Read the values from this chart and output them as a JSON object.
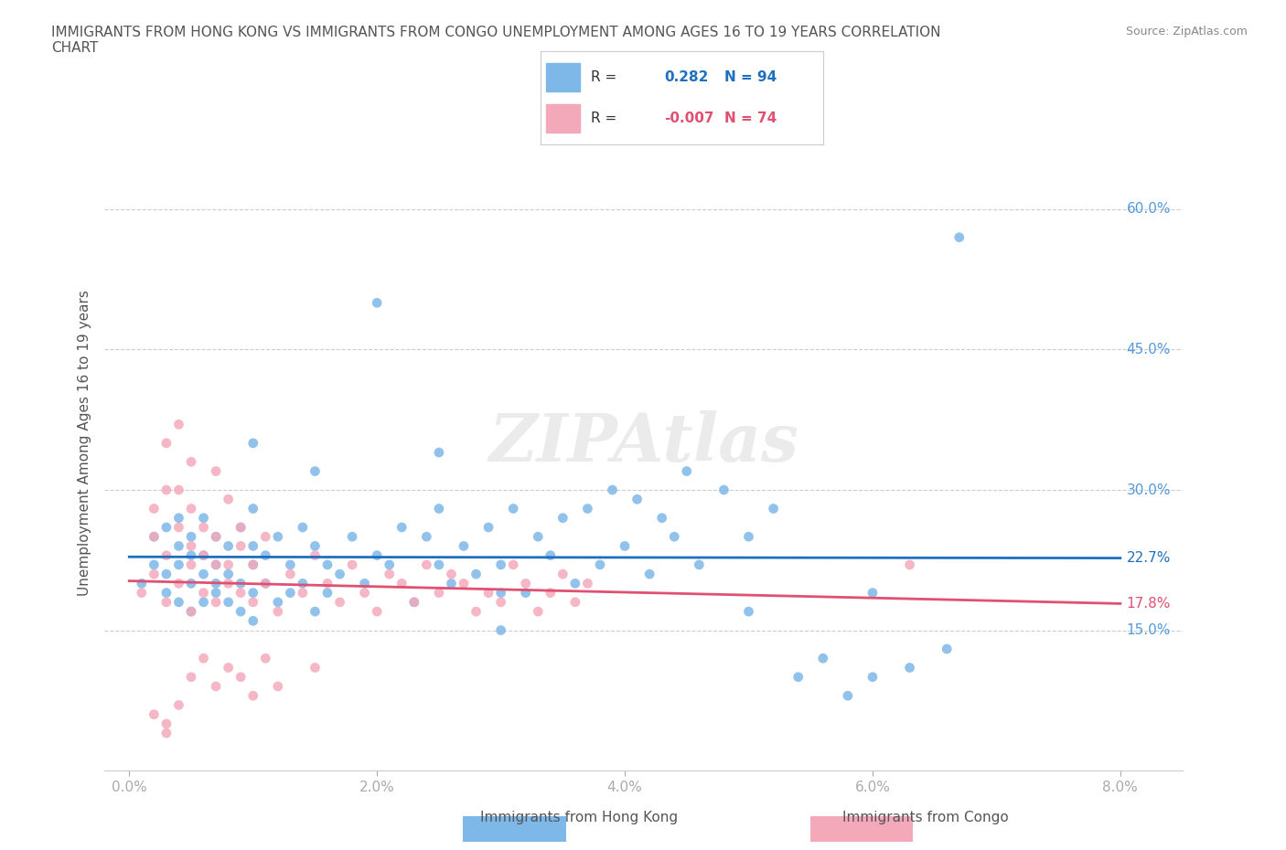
{
  "title": "IMMIGRANTS FROM HONG KONG VS IMMIGRANTS FROM CONGO UNEMPLOYMENT AMONG AGES 16 TO 19 YEARS CORRELATION\nCHART",
  "source": "Source: ZipAtlas.com",
  "xlabel": "",
  "ylabel": "Unemployment Among Ages 16 to 19 years",
  "xlim": [
    0.0,
    0.08
  ],
  "ylim": [
    0.0,
    0.7
  ],
  "xticks": [
    0.0,
    0.02,
    0.04,
    0.06,
    0.08
  ],
  "xticklabels": [
    "0.0%",
    "2.0%",
    "4.0%",
    "6.0%",
    "8.0%"
  ],
  "yticks": [
    0.15,
    0.3,
    0.45,
    0.6
  ],
  "yticklabels": [
    "15.0%",
    "30.0%",
    "45.0%",
    "60.0%"
  ],
  "hk_color": "#7EB8E8",
  "congo_color": "#F4A9BB",
  "hk_line_color": "#1E6FBF",
  "congo_line_color": "#E05070",
  "hk_R": 0.282,
  "hk_N": 94,
  "congo_R": -0.007,
  "congo_N": 74,
  "watermark": "ZIPAtlas",
  "background_color": "#ffffff",
  "grid_color": "#cccccc",
  "title_color": "#555555",
  "tick_color": "#5599DD",
  "hk_scatter_x": [
    0.001,
    0.002,
    0.002,
    0.003,
    0.003,
    0.003,
    0.004,
    0.004,
    0.004,
    0.004,
    0.005,
    0.005,
    0.005,
    0.005,
    0.006,
    0.006,
    0.006,
    0.006,
    0.007,
    0.007,
    0.007,
    0.007,
    0.008,
    0.008,
    0.008,
    0.009,
    0.009,
    0.009,
    0.01,
    0.01,
    0.01,
    0.01,
    0.011,
    0.011,
    0.012,
    0.012,
    0.013,
    0.013,
    0.014,
    0.014,
    0.015,
    0.015,
    0.016,
    0.016,
    0.017,
    0.018,
    0.019,
    0.02,
    0.021,
    0.022,
    0.023,
    0.024,
    0.025,
    0.025,
    0.026,
    0.027,
    0.028,
    0.029,
    0.03,
    0.031,
    0.032,
    0.033,
    0.034,
    0.035,
    0.036,
    0.037,
    0.038,
    0.039,
    0.04,
    0.041,
    0.042,
    0.043,
    0.044,
    0.045,
    0.046,
    0.048,
    0.05,
    0.052,
    0.054,
    0.056,
    0.058,
    0.06,
    0.063,
    0.066,
    0.01,
    0.015,
    0.02,
    0.025,
    0.03,
    0.05,
    0.06,
    0.067,
    0.01,
    0.03
  ],
  "hk_scatter_y": [
    0.2,
    0.22,
    0.25,
    0.19,
    0.21,
    0.26,
    0.18,
    0.22,
    0.24,
    0.27,
    0.17,
    0.2,
    0.23,
    0.25,
    0.18,
    0.21,
    0.23,
    0.27,
    0.19,
    0.22,
    0.2,
    0.25,
    0.18,
    0.21,
    0.24,
    0.17,
    0.2,
    0.26,
    0.19,
    0.22,
    0.24,
    0.28,
    0.2,
    0.23,
    0.18,
    0.25,
    0.19,
    0.22,
    0.2,
    0.26,
    0.17,
    0.24,
    0.19,
    0.22,
    0.21,
    0.25,
    0.2,
    0.23,
    0.22,
    0.26,
    0.18,
    0.25,
    0.22,
    0.28,
    0.2,
    0.24,
    0.21,
    0.26,
    0.22,
    0.28,
    0.19,
    0.25,
    0.23,
    0.27,
    0.2,
    0.28,
    0.22,
    0.3,
    0.24,
    0.29,
    0.21,
    0.27,
    0.25,
    0.32,
    0.22,
    0.3,
    0.25,
    0.28,
    0.1,
    0.12,
    0.08,
    0.1,
    0.11,
    0.13,
    0.35,
    0.32,
    0.5,
    0.34,
    0.15,
    0.17,
    0.19,
    0.57,
    0.16,
    0.19
  ],
  "congo_scatter_x": [
    0.001,
    0.002,
    0.002,
    0.003,
    0.003,
    0.004,
    0.004,
    0.005,
    0.005,
    0.005,
    0.006,
    0.006,
    0.007,
    0.007,
    0.008,
    0.008,
    0.009,
    0.009,
    0.01,
    0.01,
    0.011,
    0.011,
    0.012,
    0.013,
    0.014,
    0.015,
    0.016,
    0.017,
    0.018,
    0.019,
    0.02,
    0.021,
    0.022,
    0.023,
    0.024,
    0.025,
    0.026,
    0.027,
    0.028,
    0.029,
    0.03,
    0.031,
    0.032,
    0.033,
    0.034,
    0.035,
    0.036,
    0.037,
    0.005,
    0.006,
    0.007,
    0.008,
    0.009,
    0.01,
    0.011,
    0.012,
    0.015,
    0.003,
    0.004,
    0.002,
    0.005,
    0.006,
    0.007,
    0.008,
    0.007,
    0.009,
    0.003,
    0.005,
    0.004,
    0.063,
    0.003,
    0.004,
    0.002,
    0.003
  ],
  "congo_scatter_y": [
    0.19,
    0.21,
    0.25,
    0.18,
    0.23,
    0.2,
    0.26,
    0.17,
    0.22,
    0.24,
    0.19,
    0.23,
    0.18,
    0.25,
    0.2,
    0.22,
    0.19,
    0.24,
    0.18,
    0.22,
    0.2,
    0.25,
    0.17,
    0.21,
    0.19,
    0.23,
    0.2,
    0.18,
    0.22,
    0.19,
    0.17,
    0.21,
    0.2,
    0.18,
    0.22,
    0.19,
    0.21,
    0.2,
    0.17,
    0.19,
    0.18,
    0.22,
    0.2,
    0.17,
    0.19,
    0.21,
    0.18,
    0.2,
    0.1,
    0.12,
    0.09,
    0.11,
    0.1,
    0.08,
    0.12,
    0.09,
    0.11,
    0.35,
    0.3,
    0.28,
    0.28,
    0.26,
    0.32,
    0.29,
    0.22,
    0.26,
    0.3,
    0.33,
    0.37,
    0.22,
    0.05,
    0.07,
    0.06,
    0.04
  ]
}
